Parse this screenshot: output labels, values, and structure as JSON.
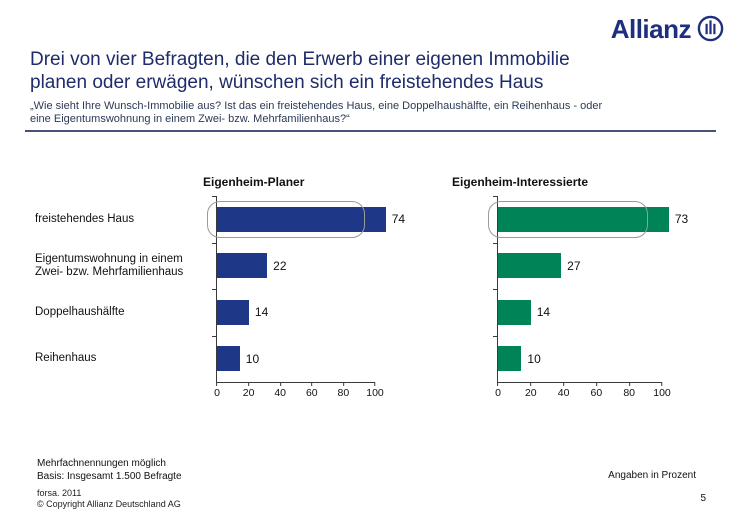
{
  "logo": {
    "text": "Allianz"
  },
  "header": {
    "title_line1": "Drei von vier Befragten, die den Erwerb einer eigenen Immobilie",
    "title_line2": "planen oder erwägen, wünschen sich ein freistehendes Haus",
    "subtitle_line1": "„Wie sieht Ihre Wunsch-Immobilie aus? Ist das ein freistehendes Haus, eine Doppelhaushälfte, ein Reihenhaus - oder",
    "subtitle_line2": "eine Eigentumswohnung in einem Zwei- bzw. Mehrfamilienhaus?“"
  },
  "chart_data": {
    "type": "bar",
    "orientation": "horizontal",
    "categories": [
      "freistehendes Haus",
      "Eigentumswohnung in einem Zwei- bzw. Mehrfamilienhaus",
      "Doppelhaushälfte",
      "Reihenhaus"
    ],
    "series": [
      {
        "name": "Eigenheim-Planer",
        "color": "#1e3787",
        "values": [
          74,
          22,
          14,
          10
        ]
      },
      {
        "name": "Eigenheim-Interessierte",
        "color": "#008457",
        "values": [
          73,
          27,
          14,
          10
        ]
      }
    ],
    "xlim": [
      0,
      100
    ],
    "x_ticks": [
      0,
      20,
      40,
      60,
      80,
      100
    ],
    "unit": "Prozent",
    "grid": "off",
    "highlight": "first category outlined with rounded box in both charts"
  },
  "footer": {
    "note_line1": "Mehrfachnennungen möglich",
    "note_line2": "Basis: Insgesamt 1.500 Befragte",
    "source_line1": "forsa. 2011",
    "source_line2": "© Copyright Allianz Deutschland AG",
    "unit_note": "Angaben in Prozent",
    "page_number": "5"
  }
}
